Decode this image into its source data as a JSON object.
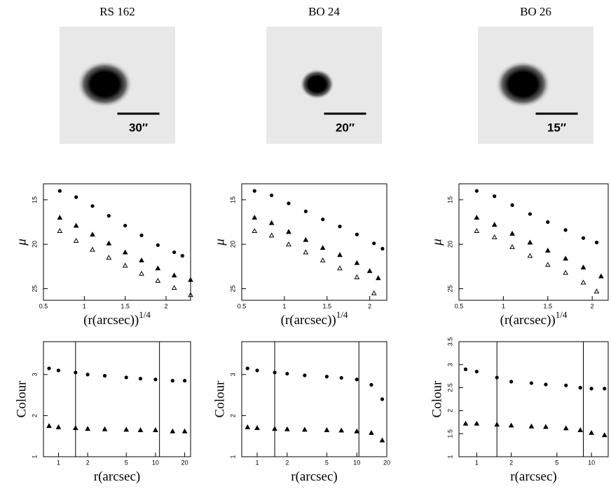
{
  "panels": [
    {
      "title": "RS 162",
      "scale_label": "30″"
    },
    {
      "title": "BO 24",
      "scale_label": "20″"
    },
    {
      "title": "BO 26",
      "scale_label": "15″"
    }
  ],
  "chart_data": [
    {
      "type": "scatter",
      "xlabel": {
        "text": "(r(arcsec))",
        "superscript": "1/4"
      },
      "ylabel": "μ",
      "xlim": [
        0.5,
        2.3
      ],
      "ylim": [
        26.3,
        13.2
      ],
      "xticks": [
        0.5,
        1,
        1.5,
        2
      ],
      "yticks": [
        15,
        20,
        25
      ],
      "series": [
        {
          "marker": "circle",
          "color": "#000",
          "x": [
            0.7,
            0.9,
            1.1,
            1.3,
            1.5,
            1.7,
            1.9,
            2.1,
            2.2
          ],
          "values": [
            14.0,
            14.7,
            15.7,
            16.8,
            17.9,
            19.0,
            20.1,
            20.9,
            21.3
          ]
        },
        {
          "marker": "triangle",
          "color": "#000",
          "x": [
            0.7,
            0.9,
            1.1,
            1.3,
            1.5,
            1.7,
            1.9,
            2.1,
            2.3
          ],
          "values": [
            17.0,
            17.9,
            18.9,
            19.9,
            20.9,
            21.8,
            22.7,
            23.5,
            24.0
          ]
        },
        {
          "marker": "open-triangle",
          "color": "#000",
          "x": [
            0.7,
            0.9,
            1.1,
            1.3,
            1.5,
            1.7,
            1.9,
            2.1,
            2.3
          ],
          "values": [
            18.5,
            19.6,
            20.6,
            21.5,
            22.4,
            23.3,
            24.1,
            24.9,
            25.7
          ]
        }
      ]
    },
    {
      "type": "scatter",
      "xlabel": {
        "text": "(r(arcsec))",
        "superscript": "1/4"
      },
      "ylabel": "μ",
      "xlim": [
        0.5,
        2.2
      ],
      "ylim": [
        26.3,
        13.2
      ],
      "xticks": [
        0.5,
        1,
        1.5,
        2
      ],
      "yticks": [
        15,
        20,
        25
      ],
      "series": [
        {
          "marker": "circle",
          "color": "#000",
          "x": [
            0.65,
            0.85,
            1.05,
            1.25,
            1.45,
            1.65,
            1.85,
            2.05,
            2.15
          ],
          "values": [
            14.0,
            14.5,
            15.4,
            16.3,
            17.2,
            18.0,
            18.9,
            19.9,
            20.5
          ]
        },
        {
          "marker": "triangle",
          "color": "#000",
          "x": [
            0.65,
            0.85,
            1.05,
            1.25,
            1.45,
            1.65,
            1.85,
            2.0,
            2.1
          ],
          "values": [
            17.0,
            17.6,
            18.6,
            19.5,
            20.4,
            21.2,
            22.1,
            23.0,
            23.8
          ]
        },
        {
          "marker": "open-triangle",
          "color": "#000",
          "x": [
            0.65,
            0.85,
            1.05,
            1.25,
            1.45,
            1.65,
            1.85,
            2.05
          ],
          "values": [
            18.5,
            19.0,
            20.0,
            20.9,
            21.8,
            22.7,
            23.7,
            25.5
          ]
        }
      ]
    },
    {
      "type": "scatter",
      "xlabel": {
        "text": "(r(arcsec))",
        "superscript": "1/4"
      },
      "ylabel": "μ",
      "xlim": [
        0.5,
        2.18
      ],
      "ylim": [
        26.3,
        13.2
      ],
      "xticks": [
        0.5,
        1,
        1.5,
        2
      ],
      "yticks": [
        15,
        20,
        25
      ],
      "series": [
        {
          "marker": "circle",
          "color": "#000",
          "x": [
            0.7,
            0.9,
            1.1,
            1.3,
            1.5,
            1.7,
            1.9,
            2.05
          ],
          "values": [
            14.0,
            14.6,
            15.6,
            16.6,
            17.5,
            18.4,
            19.3,
            19.8
          ]
        },
        {
          "marker": "triangle",
          "color": "#000",
          "x": [
            0.7,
            0.9,
            1.1,
            1.3,
            1.5,
            1.7,
            1.9,
            2.1
          ],
          "values": [
            17.0,
            17.8,
            18.8,
            19.8,
            20.7,
            21.6,
            22.6,
            23.6
          ]
        },
        {
          "marker": "open-triangle",
          "color": "#000",
          "x": [
            0.7,
            0.9,
            1.1,
            1.3,
            1.5,
            1.7,
            1.9,
            2.05
          ],
          "values": [
            18.5,
            19.2,
            20.3,
            21.3,
            22.3,
            23.2,
            24.3,
            25.3
          ]
        }
      ]
    },
    {
      "type": "logscatter",
      "xlabel": {
        "text": "r(arcsec)"
      },
      "ylabel": "Colour",
      "xlim": [
        0.7,
        23
      ],
      "ylim": [
        1,
        3.8
      ],
      "xticks": [
        1,
        2,
        5,
        10,
        20
      ],
      "yticks": [
        1,
        2,
        3
      ],
      "vlines": [
        1.5,
        11
      ],
      "series": [
        {
          "marker": "circle",
          "color": "#000",
          "x": [
            0.8,
            1,
            1.5,
            2,
            3,
            5,
            7,
            10,
            15,
            20
          ],
          "values": [
            3.15,
            3.1,
            3.05,
            3.0,
            2.97,
            2.93,
            2.9,
            2.88,
            2.85,
            2.85
          ]
        },
        {
          "marker": "triangle",
          "color": "#000",
          "x": [
            0.8,
            1,
            1.5,
            2,
            3,
            5,
            7,
            10,
            15,
            20
          ],
          "values": [
            1.75,
            1.72,
            1.7,
            1.68,
            1.67,
            1.66,
            1.65,
            1.65,
            1.62,
            1.62
          ]
        }
      ]
    },
    {
      "type": "logscatter",
      "xlabel": {
        "text": "r(arcsec)"
      },
      "ylabel": "Colour",
      "xlim": [
        0.7,
        20
      ],
      "ylim": [
        1,
        3.8
      ],
      "xticks": [
        1,
        2,
        5,
        10,
        20
      ],
      "yticks": [
        1,
        2,
        3
      ],
      "vlines": [
        1.5,
        10.5
      ],
      "series": [
        {
          "marker": "circle",
          "color": "#000",
          "x": [
            0.8,
            1,
            1.5,
            2,
            3,
            5,
            7,
            10,
            14,
            18
          ],
          "values": [
            3.15,
            3.1,
            3.05,
            3.02,
            2.98,
            2.95,
            2.92,
            2.88,
            2.75,
            2.4
          ]
        },
        {
          "marker": "triangle",
          "color": "#000",
          "x": [
            0.8,
            1,
            1.5,
            2,
            3,
            5,
            7,
            10,
            14,
            18
          ],
          "values": [
            1.72,
            1.7,
            1.68,
            1.67,
            1.66,
            1.65,
            1.64,
            1.62,
            1.58,
            1.4
          ]
        }
      ]
    },
    {
      "type": "logscatter",
      "xlabel": {
        "text": "r(arcsec)"
      },
      "ylabel": "Colour",
      "xlim": [
        0.7,
        14
      ],
      "ylim": [
        1,
        3.5
      ],
      "xticks": [
        1,
        2,
        5,
        10
      ],
      "yticks": [
        1,
        1.5,
        2,
        2.5,
        3,
        3.5
      ],
      "vlines": [
        1.5,
        8.5
      ],
      "series": [
        {
          "marker": "circle",
          "color": "#000",
          "x": [
            0.8,
            1,
            1.5,
            2,
            3,
            4,
            6,
            8,
            10,
            13
          ],
          "values": [
            2.9,
            2.85,
            2.72,
            2.63,
            2.6,
            2.57,
            2.55,
            2.5,
            2.48,
            2.48
          ]
        },
        {
          "marker": "triangle",
          "color": "#000",
          "x": [
            0.8,
            1,
            1.5,
            2,
            3,
            4,
            6,
            8,
            10,
            13
          ],
          "values": [
            1.72,
            1.72,
            1.7,
            1.68,
            1.66,
            1.65,
            1.62,
            1.58,
            1.52,
            1.47
          ]
        }
      ]
    }
  ]
}
